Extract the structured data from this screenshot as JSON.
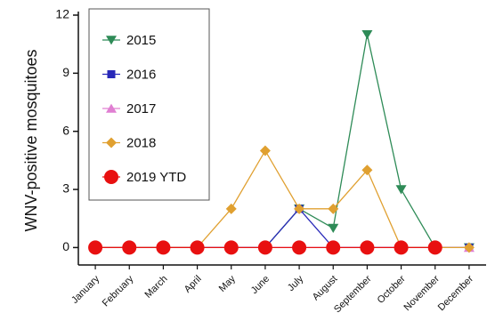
{
  "chart_data": {
    "type": "line",
    "ylabel": "WNV-positive mosquitoes",
    "categories": [
      "January",
      "February",
      "March",
      "April",
      "May",
      "June",
      "July",
      "August",
      "September",
      "October",
      "November",
      "December"
    ],
    "series": [
      {
        "name": "2015",
        "color": "#2e8b57",
        "marker": "triangle-down",
        "values": [
          0,
          0,
          0,
          0,
          0,
          0,
          2,
          1,
          11,
          3,
          0,
          0
        ]
      },
      {
        "name": "2016",
        "color": "#2828b8",
        "marker": "square",
        "values": [
          0,
          0,
          0,
          0,
          0,
          0,
          2,
          0,
          0,
          0,
          0,
          0
        ]
      },
      {
        "name": "2017",
        "color": "#e07fd2",
        "marker": "triangle-up",
        "values": [
          0,
          0,
          0,
          0,
          0,
          0,
          0,
          0,
          0,
          0,
          0,
          0
        ]
      },
      {
        "name": "2018",
        "color": "#e0a030",
        "marker": "diamond",
        "values": [
          0,
          0,
          0,
          0,
          2,
          5,
          2,
          2,
          4,
          0,
          0,
          0
        ]
      },
      {
        "name": "2019 YTD",
        "color": "#e81010",
        "marker": "circle",
        "values": [
          0,
          0,
          0,
          0,
          0,
          0,
          0,
          0,
          0,
          0,
          0,
          null
        ]
      }
    ],
    "ylim": [
      -0.9,
      12
    ],
    "yticks": [
      0,
      3,
      6,
      9,
      12
    ],
    "legend": "upper left"
  }
}
